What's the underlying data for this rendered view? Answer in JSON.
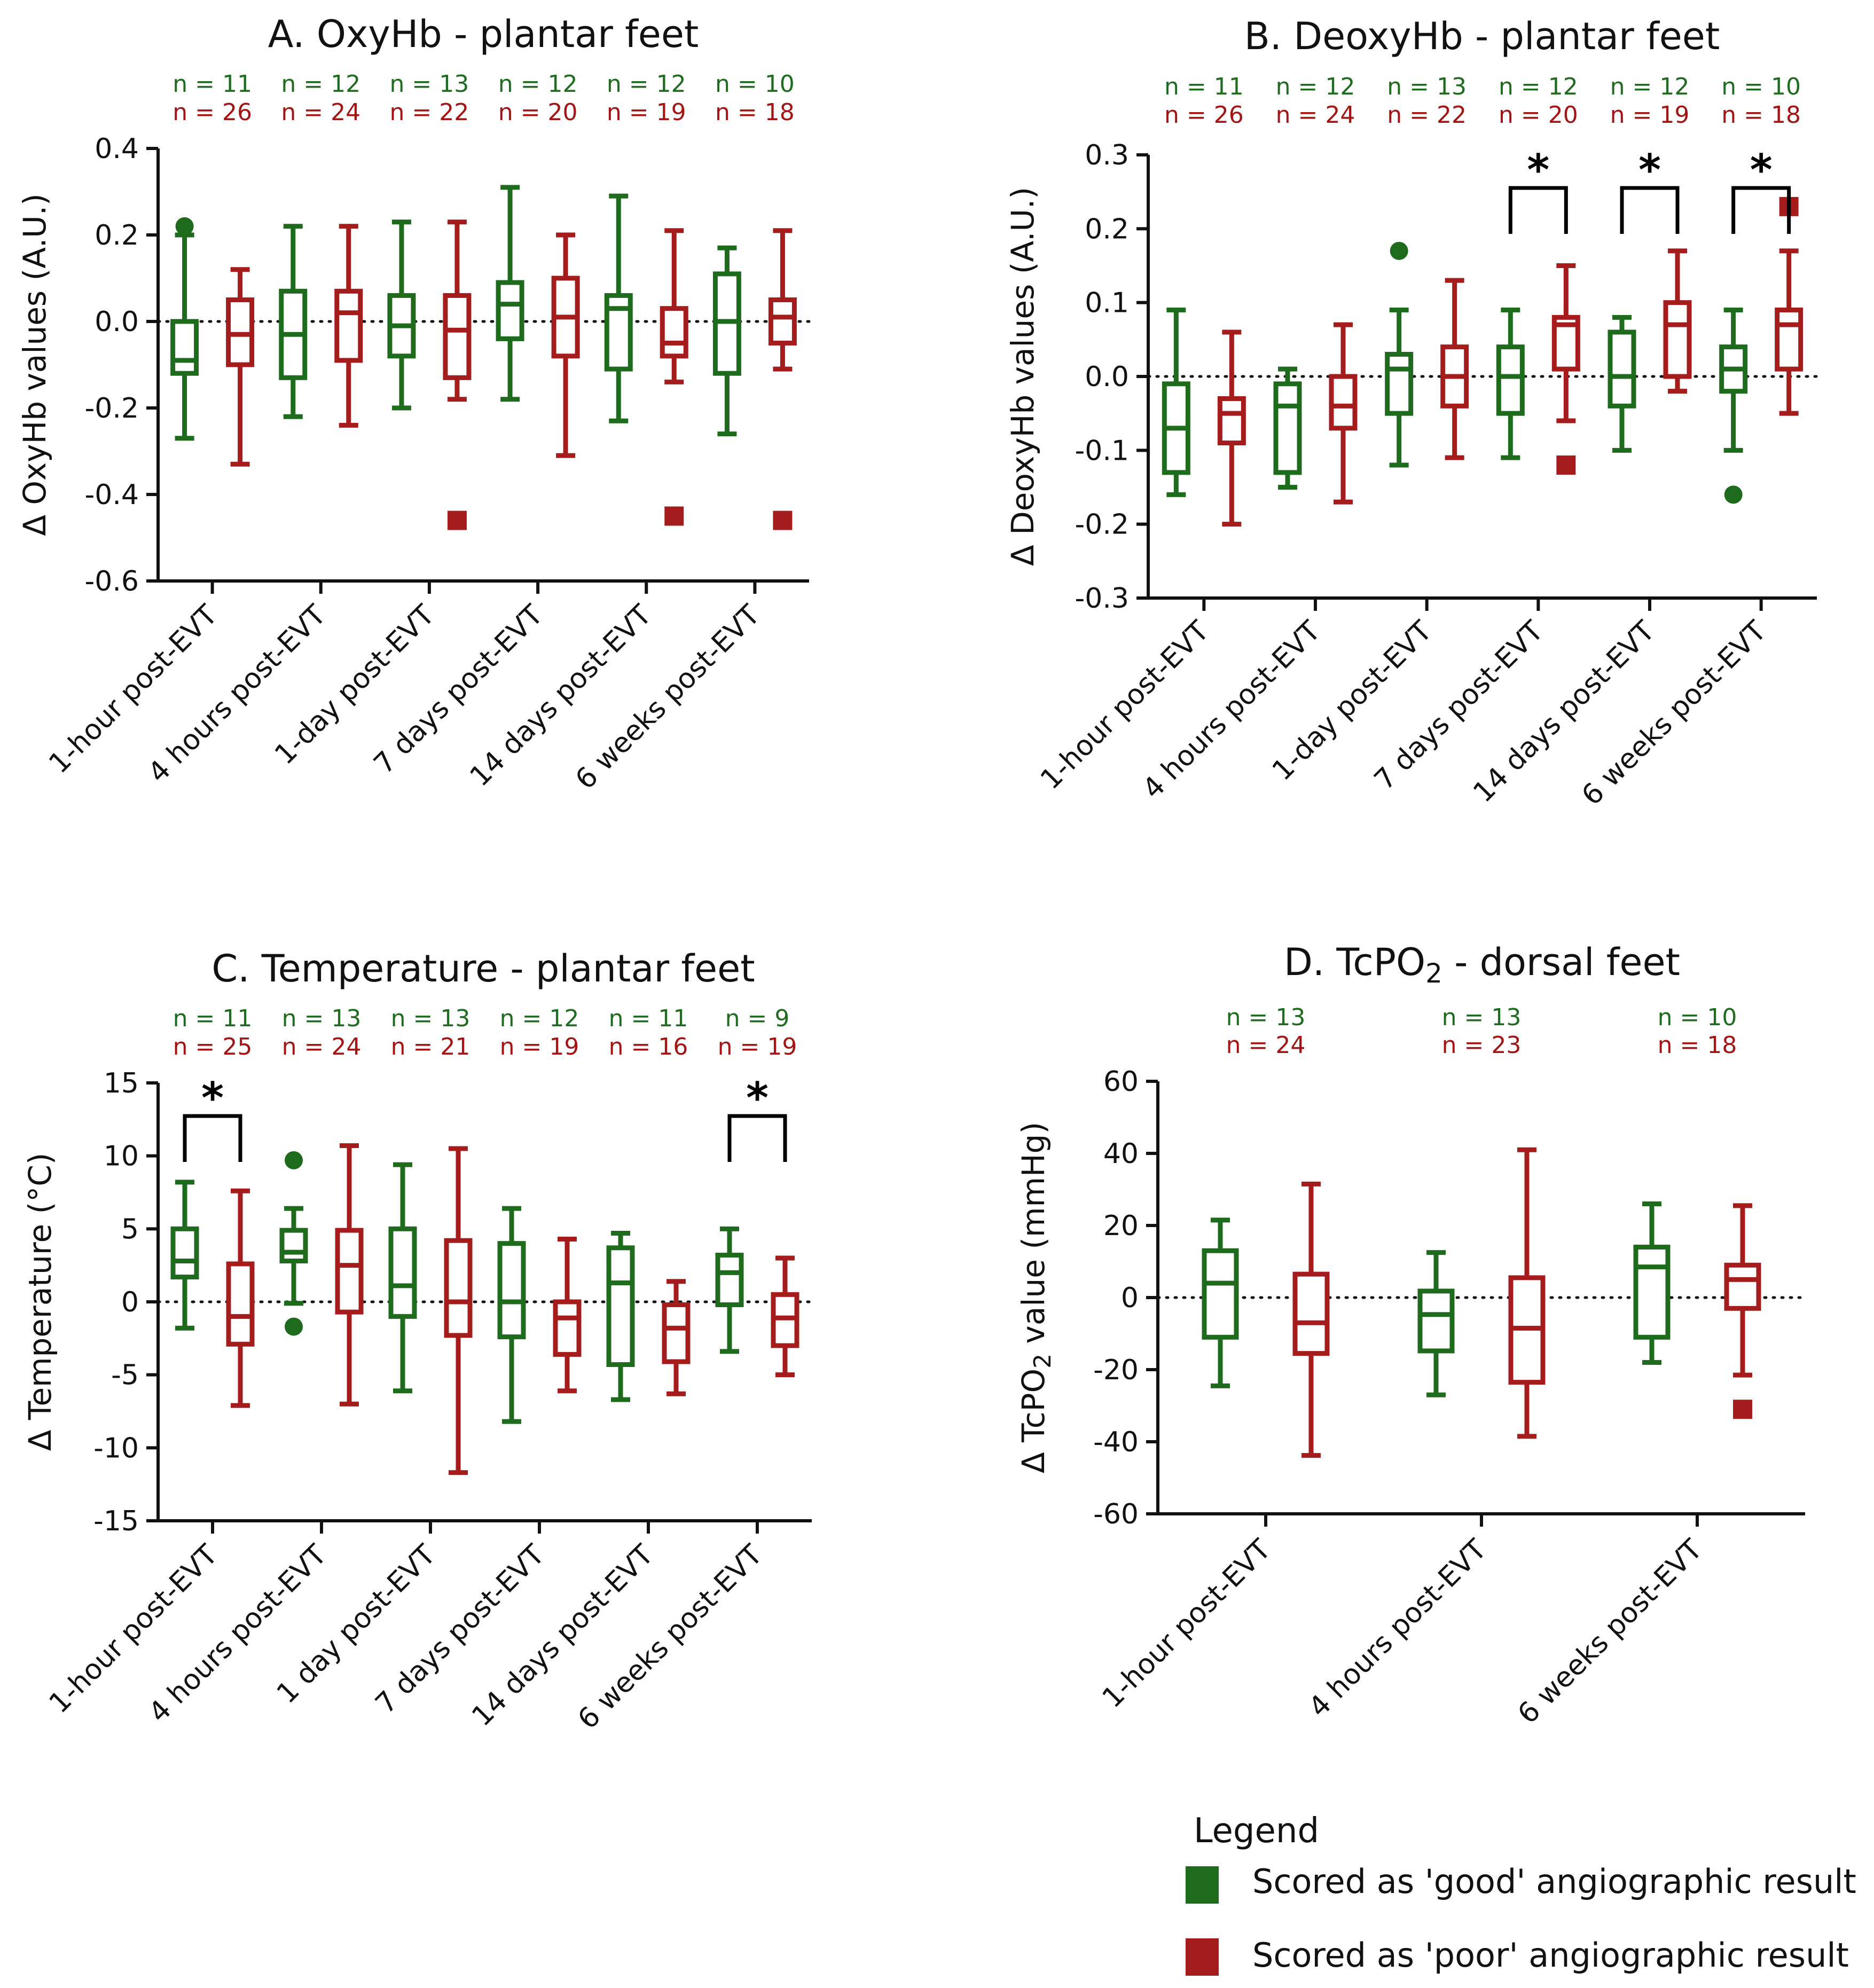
{
  "colors": {
    "good": "#1e6b1e",
    "poor": "#a51c1c",
    "axis": "#111111"
  },
  "legend": {
    "title": "Legend",
    "items": [
      {
        "label": "Scored as 'good' angiographic result",
        "color": "#1e6b1e"
      },
      {
        "label": "Scored as 'poor' angiographic result",
        "color": "#a51c1c"
      }
    ]
  },
  "chart_data": [
    {
      "id": "A",
      "type": "boxplot",
      "title": "A. OxyHb - plantar feet",
      "ylabel": "Δ OxyHb values (A.U.)",
      "ylim": [
        -0.6,
        0.4
      ],
      "yticks": [
        "0.4",
        "0.2",
        "0.0",
        "-0.2",
        "-0.4",
        "-0.6"
      ],
      "ytick_values": [
        0.4,
        0.2,
        0.0,
        -0.2,
        -0.4,
        -0.6
      ],
      "categories": [
        "1-hour post-EVT",
        "4 hours post-EVT",
        "1-day post-EVT",
        "7 days post-EVT",
        "14 days post-EVT",
        "6 weeks post-EVT"
      ],
      "n_good": [
        "n = 11",
        "n = 12",
        "n = 13",
        "n = 12",
        "n = 12",
        "n = 10"
      ],
      "n_poor": [
        "n = 26",
        "n = 24",
        "n = 22",
        "n = 20",
        "n = 19",
        "n = 18"
      ],
      "good": [
        {
          "min": -0.27,
          "q1": -0.12,
          "median": -0.09,
          "q3": 0.0,
          "max": 0.2,
          "outliers": [
            0.22
          ]
        },
        {
          "min": -0.22,
          "q1": -0.13,
          "median": -0.03,
          "q3": 0.07,
          "max": 0.22,
          "outliers": []
        },
        {
          "min": -0.2,
          "q1": -0.08,
          "median": -0.01,
          "q3": 0.06,
          "max": 0.23,
          "outliers": []
        },
        {
          "min": -0.18,
          "q1": -0.04,
          "median": 0.04,
          "q3": 0.09,
          "max": 0.31,
          "outliers": []
        },
        {
          "min": -0.23,
          "q1": -0.11,
          "median": 0.03,
          "q3": 0.06,
          "max": 0.29,
          "outliers": []
        },
        {
          "min": -0.26,
          "q1": -0.12,
          "median": 0.0,
          "q3": 0.11,
          "max": 0.17,
          "outliers": []
        }
      ],
      "poor": [
        {
          "min": -0.33,
          "q1": -0.1,
          "median": -0.03,
          "q3": 0.05,
          "max": 0.12,
          "outliers": []
        },
        {
          "min": -0.24,
          "q1": -0.09,
          "median": 0.02,
          "q3": 0.07,
          "max": 0.22,
          "outliers": []
        },
        {
          "min": -0.18,
          "q1": -0.13,
          "median": -0.02,
          "q3": 0.06,
          "max": 0.23,
          "outliers": [
            -0.46
          ]
        },
        {
          "min": -0.31,
          "q1": -0.08,
          "median": 0.01,
          "q3": 0.1,
          "max": 0.2,
          "outliers": []
        },
        {
          "min": -0.14,
          "q1": -0.08,
          "median": -0.05,
          "q3": 0.03,
          "max": 0.21,
          "outliers": [
            -0.45
          ]
        },
        {
          "min": -0.11,
          "q1": -0.05,
          "median": 0.01,
          "q3": 0.05,
          "max": 0.21,
          "outliers": [
            -0.46
          ]
        }
      ],
      "significance": []
    },
    {
      "id": "B",
      "type": "boxplot",
      "title": "B. DeoxyHb - plantar feet",
      "ylabel": "Δ DeoxyHb values (A.U.)",
      "ylim": [
        -0.3,
        0.3
      ],
      "yticks": [
        "0.3",
        "0.2",
        "0.1",
        "0.0",
        "-0.1",
        "-0.2",
        "-0.3"
      ],
      "ytick_values": [
        0.3,
        0.2,
        0.1,
        0.0,
        -0.1,
        -0.2,
        -0.3
      ],
      "categories": [
        "1-hour post-EVT",
        "4 hours post-EVT",
        "1-day post-EVT",
        "7 days post-EVT",
        "14 days post-EVT",
        "6 weeks post-EVT"
      ],
      "n_good": [
        "n = 11",
        "n = 12",
        "n = 13",
        "n = 12",
        "n = 12",
        "n = 10"
      ],
      "n_poor": [
        "n = 26",
        "n = 24",
        "n = 22",
        "n = 20",
        "n = 19",
        "n = 18"
      ],
      "good": [
        {
          "min": -0.16,
          "q1": -0.13,
          "median": -0.07,
          "q3": -0.01,
          "max": 0.09,
          "outliers": []
        },
        {
          "min": -0.15,
          "q1": -0.13,
          "median": -0.04,
          "q3": -0.01,
          "max": 0.01,
          "outliers": []
        },
        {
          "min": -0.12,
          "q1": -0.05,
          "median": 0.01,
          "q3": 0.03,
          "max": 0.09,
          "outliers": [
            0.17
          ]
        },
        {
          "min": -0.11,
          "q1": -0.05,
          "median": 0.0,
          "q3": 0.04,
          "max": 0.09,
          "outliers": []
        },
        {
          "min": -0.1,
          "q1": -0.04,
          "median": 0.0,
          "q3": 0.06,
          "max": 0.08,
          "outliers": []
        },
        {
          "min": -0.1,
          "q1": -0.02,
          "median": 0.01,
          "q3": 0.04,
          "max": 0.09,
          "outliers": [
            -0.16
          ]
        }
      ],
      "poor": [
        {
          "min": -0.2,
          "q1": -0.09,
          "median": -0.05,
          "q3": -0.03,
          "max": 0.06,
          "outliers": []
        },
        {
          "min": -0.17,
          "q1": -0.07,
          "median": -0.04,
          "q3": 0.0,
          "max": 0.07,
          "outliers": []
        },
        {
          "min": -0.11,
          "q1": -0.04,
          "median": 0.0,
          "q3": 0.04,
          "max": 0.13,
          "outliers": []
        },
        {
          "min": -0.06,
          "q1": 0.01,
          "median": 0.07,
          "q3": 0.08,
          "max": 0.15,
          "outliers": [
            -0.12
          ]
        },
        {
          "min": -0.02,
          "q1": 0.0,
          "median": 0.07,
          "q3": 0.1,
          "max": 0.17,
          "outliers": []
        },
        {
          "min": -0.05,
          "q1": 0.01,
          "median": 0.07,
          "q3": 0.09,
          "max": 0.17,
          "outliers": [
            0.23
          ]
        }
      ],
      "significance": [
        {
          "category_index": 3,
          "label": "*"
        },
        {
          "category_index": 4,
          "label": "*"
        },
        {
          "category_index": 5,
          "label": "*"
        }
      ]
    },
    {
      "id": "C",
      "type": "boxplot",
      "title": "C. Temperature - plantar feet",
      "ylabel": "Δ Temperature (°C)",
      "ylim": [
        -15,
        15
      ],
      "yticks": [
        "15",
        "10",
        "5",
        "0",
        "-5",
        "-10",
        "-15"
      ],
      "ytick_values": [
        15,
        10,
        5,
        0,
        -5,
        -10,
        -15
      ],
      "categories": [
        "1-hour post-EVT",
        "4 hours post-EVT",
        "1 day post-EVT",
        "7 days post-EVT",
        "14 days post-EVT",
        "6 weeks post-EVT"
      ],
      "n_good": [
        "n = 11",
        "n = 13",
        "n = 13",
        "n = 12",
        "n = 11",
        "n = 9"
      ],
      "n_poor": [
        "n = 25",
        "n = 24",
        "n = 21",
        "n = 19",
        "n = 16",
        "n = 19"
      ],
      "good": [
        {
          "min": -1.8,
          "q1": 1.7,
          "median": 2.8,
          "q3": 5.0,
          "max": 8.2,
          "outliers": []
        },
        {
          "min": -0.1,
          "q1": 2.8,
          "median": 3.4,
          "q3": 4.9,
          "max": 6.4,
          "outliers": [
            9.7,
            -1.7
          ]
        },
        {
          "min": -6.1,
          "q1": -1.0,
          "median": 1.1,
          "q3": 5.0,
          "max": 9.4,
          "outliers": []
        },
        {
          "min": -8.2,
          "q1": -2.4,
          "median": 0.0,
          "q3": 4.0,
          "max": 6.4,
          "outliers": []
        },
        {
          "min": -6.7,
          "q1": -4.3,
          "median": 1.3,
          "q3": 3.7,
          "max": 4.7,
          "outliers": []
        },
        {
          "min": -3.4,
          "q1": -0.2,
          "median": 2.0,
          "q3": 3.2,
          "max": 5.0,
          "outliers": []
        }
      ],
      "poor": [
        {
          "min": -7.1,
          "q1": -2.9,
          "median": -1.0,
          "q3": 2.6,
          "max": 7.6,
          "outliers": []
        },
        {
          "min": -7.0,
          "q1": -0.7,
          "median": 2.5,
          "q3": 4.9,
          "max": 10.7,
          "outliers": []
        },
        {
          "min": -11.7,
          "q1": -2.3,
          "median": 0.0,
          "q3": 4.2,
          "max": 10.5,
          "outliers": []
        },
        {
          "min": -6.1,
          "q1": -3.6,
          "median": -1.1,
          "q3": 0.0,
          "max": 4.3,
          "outliers": []
        },
        {
          "min": -6.3,
          "q1": -4.1,
          "median": -1.8,
          "q3": -0.2,
          "max": 1.4,
          "outliers": []
        },
        {
          "min": -5.0,
          "q1": -3.0,
          "median": -1.1,
          "q3": 0.5,
          "max": 3.0,
          "outliers": []
        }
      ],
      "significance": [
        {
          "category_index": 0,
          "label": "*"
        },
        {
          "category_index": 5,
          "label": "*"
        }
      ]
    },
    {
      "id": "D",
      "type": "boxplot",
      "title": "D. TcPO",
      "title_sub": "2",
      "title_rest": " - dorsal feet",
      "ylabel": "Δ TcPO",
      "ylabel_sub": "2",
      "ylabel_rest": " value (mmHg)",
      "ylim": [
        -60,
        60
      ],
      "yticks": [
        "60",
        "40",
        "20",
        "0",
        "-20",
        "-40",
        "-60"
      ],
      "ytick_values": [
        60,
        40,
        20,
        0,
        -20,
        -40,
        -60
      ],
      "categories": [
        "1-hour post-EVT",
        "4 hours post-EVT",
        "6 weeks post-EVT"
      ],
      "n_good": [
        "n = 13",
        "n = 13",
        "n = 10"
      ],
      "n_poor": [
        "n = 24",
        "n = 23",
        "n = 18"
      ],
      "good": [
        {
          "min": -24.5,
          "q1": -11.0,
          "median": 4.0,
          "q3": 13.0,
          "max": 21.5,
          "outliers": []
        },
        {
          "min": -27.0,
          "q1": -14.8,
          "median": -4.7,
          "q3": 1.8,
          "max": 12.5,
          "outliers": []
        },
        {
          "min": -18.0,
          "q1": -11.0,
          "median": 8.5,
          "q3": 14.0,
          "max": 26.0,
          "outliers": []
        }
      ],
      "poor": [
        {
          "min": -43.8,
          "q1": -15.5,
          "median": -7.0,
          "q3": 6.5,
          "max": 31.5,
          "outliers": []
        },
        {
          "min": -38.5,
          "q1": -23.5,
          "median": -8.5,
          "q3": 5.5,
          "max": 41.0,
          "outliers": []
        },
        {
          "min": -21.5,
          "q1": -3.0,
          "median": 5.0,
          "q3": 9.0,
          "max": 25.5,
          "outliers": [
            -31.0
          ]
        }
      ],
      "significance": []
    }
  ]
}
